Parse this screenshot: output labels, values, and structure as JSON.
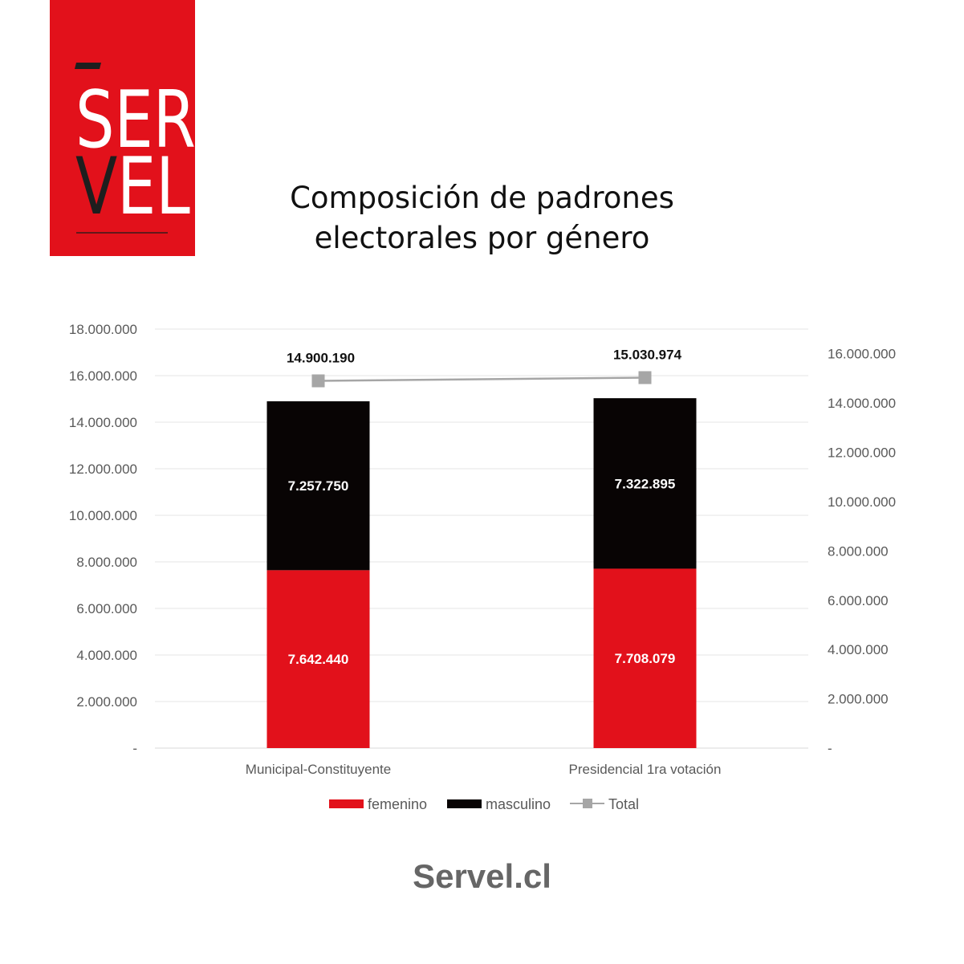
{
  "logo": {
    "text_top": "SER",
    "text_bottom_v": "V",
    "text_bottom_rest": "EL",
    "brand_color": "#e2111b"
  },
  "title_line1": "Composición de padrones",
  "title_line2": "electorales por género",
  "footer": "Servel.cl",
  "chart_data": {
    "type": "bar",
    "stacked": true,
    "categories": [
      "Municipal-Constituyente",
      "Presidencial 1ra votación"
    ],
    "series": [
      {
        "name": "femenino",
        "values": [
          7642440,
          7708079
        ],
        "labels": [
          "7.642.440",
          "7.708.079"
        ],
        "color": "#e2111b",
        "axis": "left"
      },
      {
        "name": "masculino",
        "values": [
          7257750,
          7322895
        ],
        "labels": [
          "7.257.750",
          "7.322.895"
        ],
        "color": "#080404",
        "axis": "left"
      },
      {
        "name": "Total",
        "type": "line",
        "values": [
          14900190,
          15030974
        ],
        "labels": [
          "14.900.190",
          "15.030.974"
        ],
        "color": "#a6a6a6",
        "axis": "right"
      }
    ],
    "ylim_left": [
      0,
      18000000
    ],
    "yticks_left": [
      "-",
      "2.000.000",
      "4.000.000",
      "6.000.000",
      "8.000.000",
      "10.000.000",
      "12.000.000",
      "14.000.000",
      "16.000.000",
      "18.000.000"
    ],
    "ylim_right": [
      0,
      17000000
    ],
    "yticks_right": [
      "-",
      "2.000.000",
      "4.000.000",
      "6.000.000",
      "8.000.000",
      "10.000.000",
      "12.000.000",
      "14.000.000",
      "16.000.000"
    ],
    "grid": true,
    "legend_position": "bottom"
  }
}
